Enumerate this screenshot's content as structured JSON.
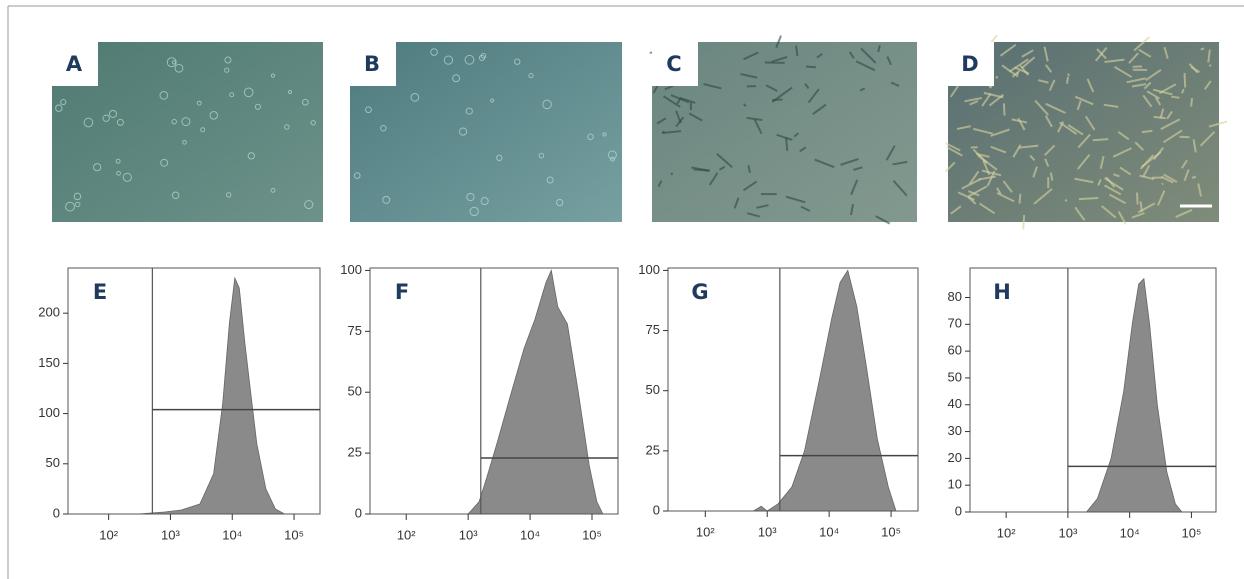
{
  "image_panels": [
    {
      "label": "A"
    },
    {
      "label": "B"
    },
    {
      "label": "C"
    },
    {
      "label": "D"
    }
  ],
  "chart_data": [
    {
      "type": "histogram",
      "label": "E",
      "color": "#8a8a8a",
      "log_x": true,
      "x": [
        300,
        800,
        1500,
        3000,
        5000,
        7000,
        9000,
        11000,
        13000,
        16000,
        20000,
        25000,
        35000,
        50000,
        70000
      ],
      "values": [
        0,
        2,
        4,
        10,
        40,
        110,
        190,
        235,
        225,
        170,
        120,
        70,
        25,
        5,
        0
      ],
      "xlim": [
        22,
        263000
      ],
      "ylim": [
        0,
        245
      ],
      "xticks": [
        {
          "value": 100,
          "label": "10²"
        },
        {
          "value": 1000,
          "label": "10³"
        },
        {
          "value": 10000,
          "label": "10⁴"
        },
        {
          "value": 100000,
          "label": "10⁵"
        }
      ],
      "yticks": [
        0,
        50,
        100,
        150,
        200
      ],
      "gate_x": 510,
      "gate_y": 104
    },
    {
      "type": "histogram",
      "label": "F",
      "color": "#8a8a8a",
      "log_x": true,
      "x": [
        1000,
        1500,
        2000,
        3000,
        5000,
        8000,
        12000,
        18000,
        22000,
        28000,
        40000,
        60000,
        90000,
        120000,
        150000
      ],
      "values": [
        0,
        5,
        15,
        30,
        50,
        68,
        80,
        95,
        100,
        85,
        78,
        50,
        20,
        5,
        0
      ],
      "xlim": [
        26,
        263000
      ],
      "ylim": [
        0,
        101
      ],
      "xticks": [
        {
          "value": 100,
          "label": "10²"
        },
        {
          "value": 1000,
          "label": "10³"
        },
        {
          "value": 10000,
          "label": "10⁴"
        },
        {
          "value": 100000,
          "label": "10⁵"
        }
      ],
      "yticks": [
        0,
        25,
        50,
        75,
        100
      ],
      "gate_x": 1600,
      "gate_y": 23
    },
    {
      "type": "histogram",
      "label": "G",
      "color": "#8a8a8a",
      "log_x": true,
      "x": [
        600,
        800,
        1000,
        1500,
        2500,
        4000,
        7000,
        11000,
        15000,
        20000,
        28000,
        40000,
        60000,
        90000,
        120000
      ],
      "values": [
        0,
        2,
        0,
        3,
        10,
        25,
        55,
        80,
        95,
        100,
        85,
        60,
        30,
        10,
        0
      ],
      "xlim": [
        25,
        272000
      ],
      "ylim": [
        0,
        101
      ],
      "xticks": [
        {
          "value": 100,
          "label": "10²"
        },
        {
          "value": 1000,
          "label": "10³"
        },
        {
          "value": 10000,
          "label": "10⁴"
        },
        {
          "value": 100000,
          "label": "10⁵"
        }
      ],
      "yticks": [
        0,
        25,
        50,
        75,
        100
      ],
      "gate_x": 1600,
      "gate_y": 23
    },
    {
      "type": "histogram",
      "label": "H",
      "color": "#8a8a8a",
      "log_x": true,
      "x": [
        2000,
        3000,
        5000,
        8000,
        11000,
        14000,
        17000,
        21000,
        28000,
        40000,
        55000,
        70000
      ],
      "values": [
        0,
        5,
        20,
        45,
        70,
        85,
        87,
        70,
        40,
        15,
        3,
        0
      ],
      "xlim": [
        26,
        250000
      ],
      "ylim": [
        0,
        91
      ],
      "xticks": [
        {
          "value": 100,
          "label": "10²"
        },
        {
          "value": 1000,
          "label": "10³"
        },
        {
          "value": 10000,
          "label": "10⁴"
        },
        {
          "value": 100000,
          "label": "10⁵"
        }
      ],
      "yticks": [
        0,
        10,
        20,
        30,
        40,
        50,
        60,
        70,
        80
      ],
      "gate_x": 1000,
      "gate_y": 17
    }
  ]
}
